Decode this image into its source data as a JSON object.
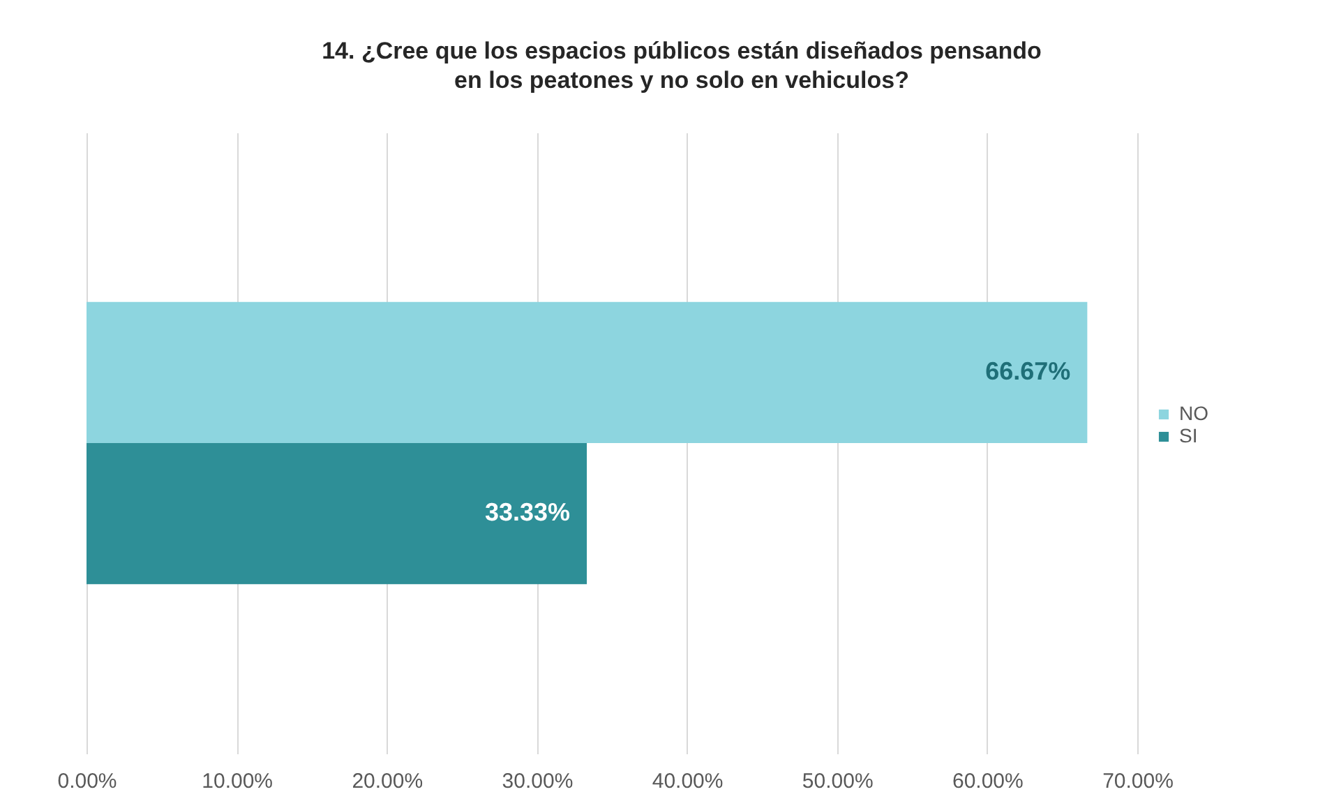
{
  "chart_data": {
    "type": "bar",
    "orientation": "horizontal",
    "title": "14. ¿Cree que los espacios públicos están diseñados pensando en los peatones y no solo en vehiculos?",
    "categories": [
      null
    ],
    "series": [
      {
        "name": "NO",
        "color": "#8dd5df",
        "values": [
          66.67
        ],
        "value_labels": [
          "66.67%"
        ]
      },
      {
        "name": "SI",
        "color": "#2e8f97",
        "values": [
          33.33
        ],
        "value_labels": [
          "33.33%"
        ]
      }
    ],
    "xlim": [
      0,
      70
    ],
    "xticks": [
      {
        "value": 0,
        "label": "0.00%"
      },
      {
        "value": 10,
        "label": "10.00%"
      },
      {
        "value": 20,
        "label": "20.00%"
      },
      {
        "value": 30,
        "label": "30.00%"
      },
      {
        "value": 40,
        "label": "40.00%"
      },
      {
        "value": 50,
        "label": "50.00%"
      },
      {
        "value": 60,
        "label": "60.00%"
      },
      {
        "value": 70,
        "label": "70.00%"
      }
    ],
    "grid": "x",
    "legend": "right"
  }
}
